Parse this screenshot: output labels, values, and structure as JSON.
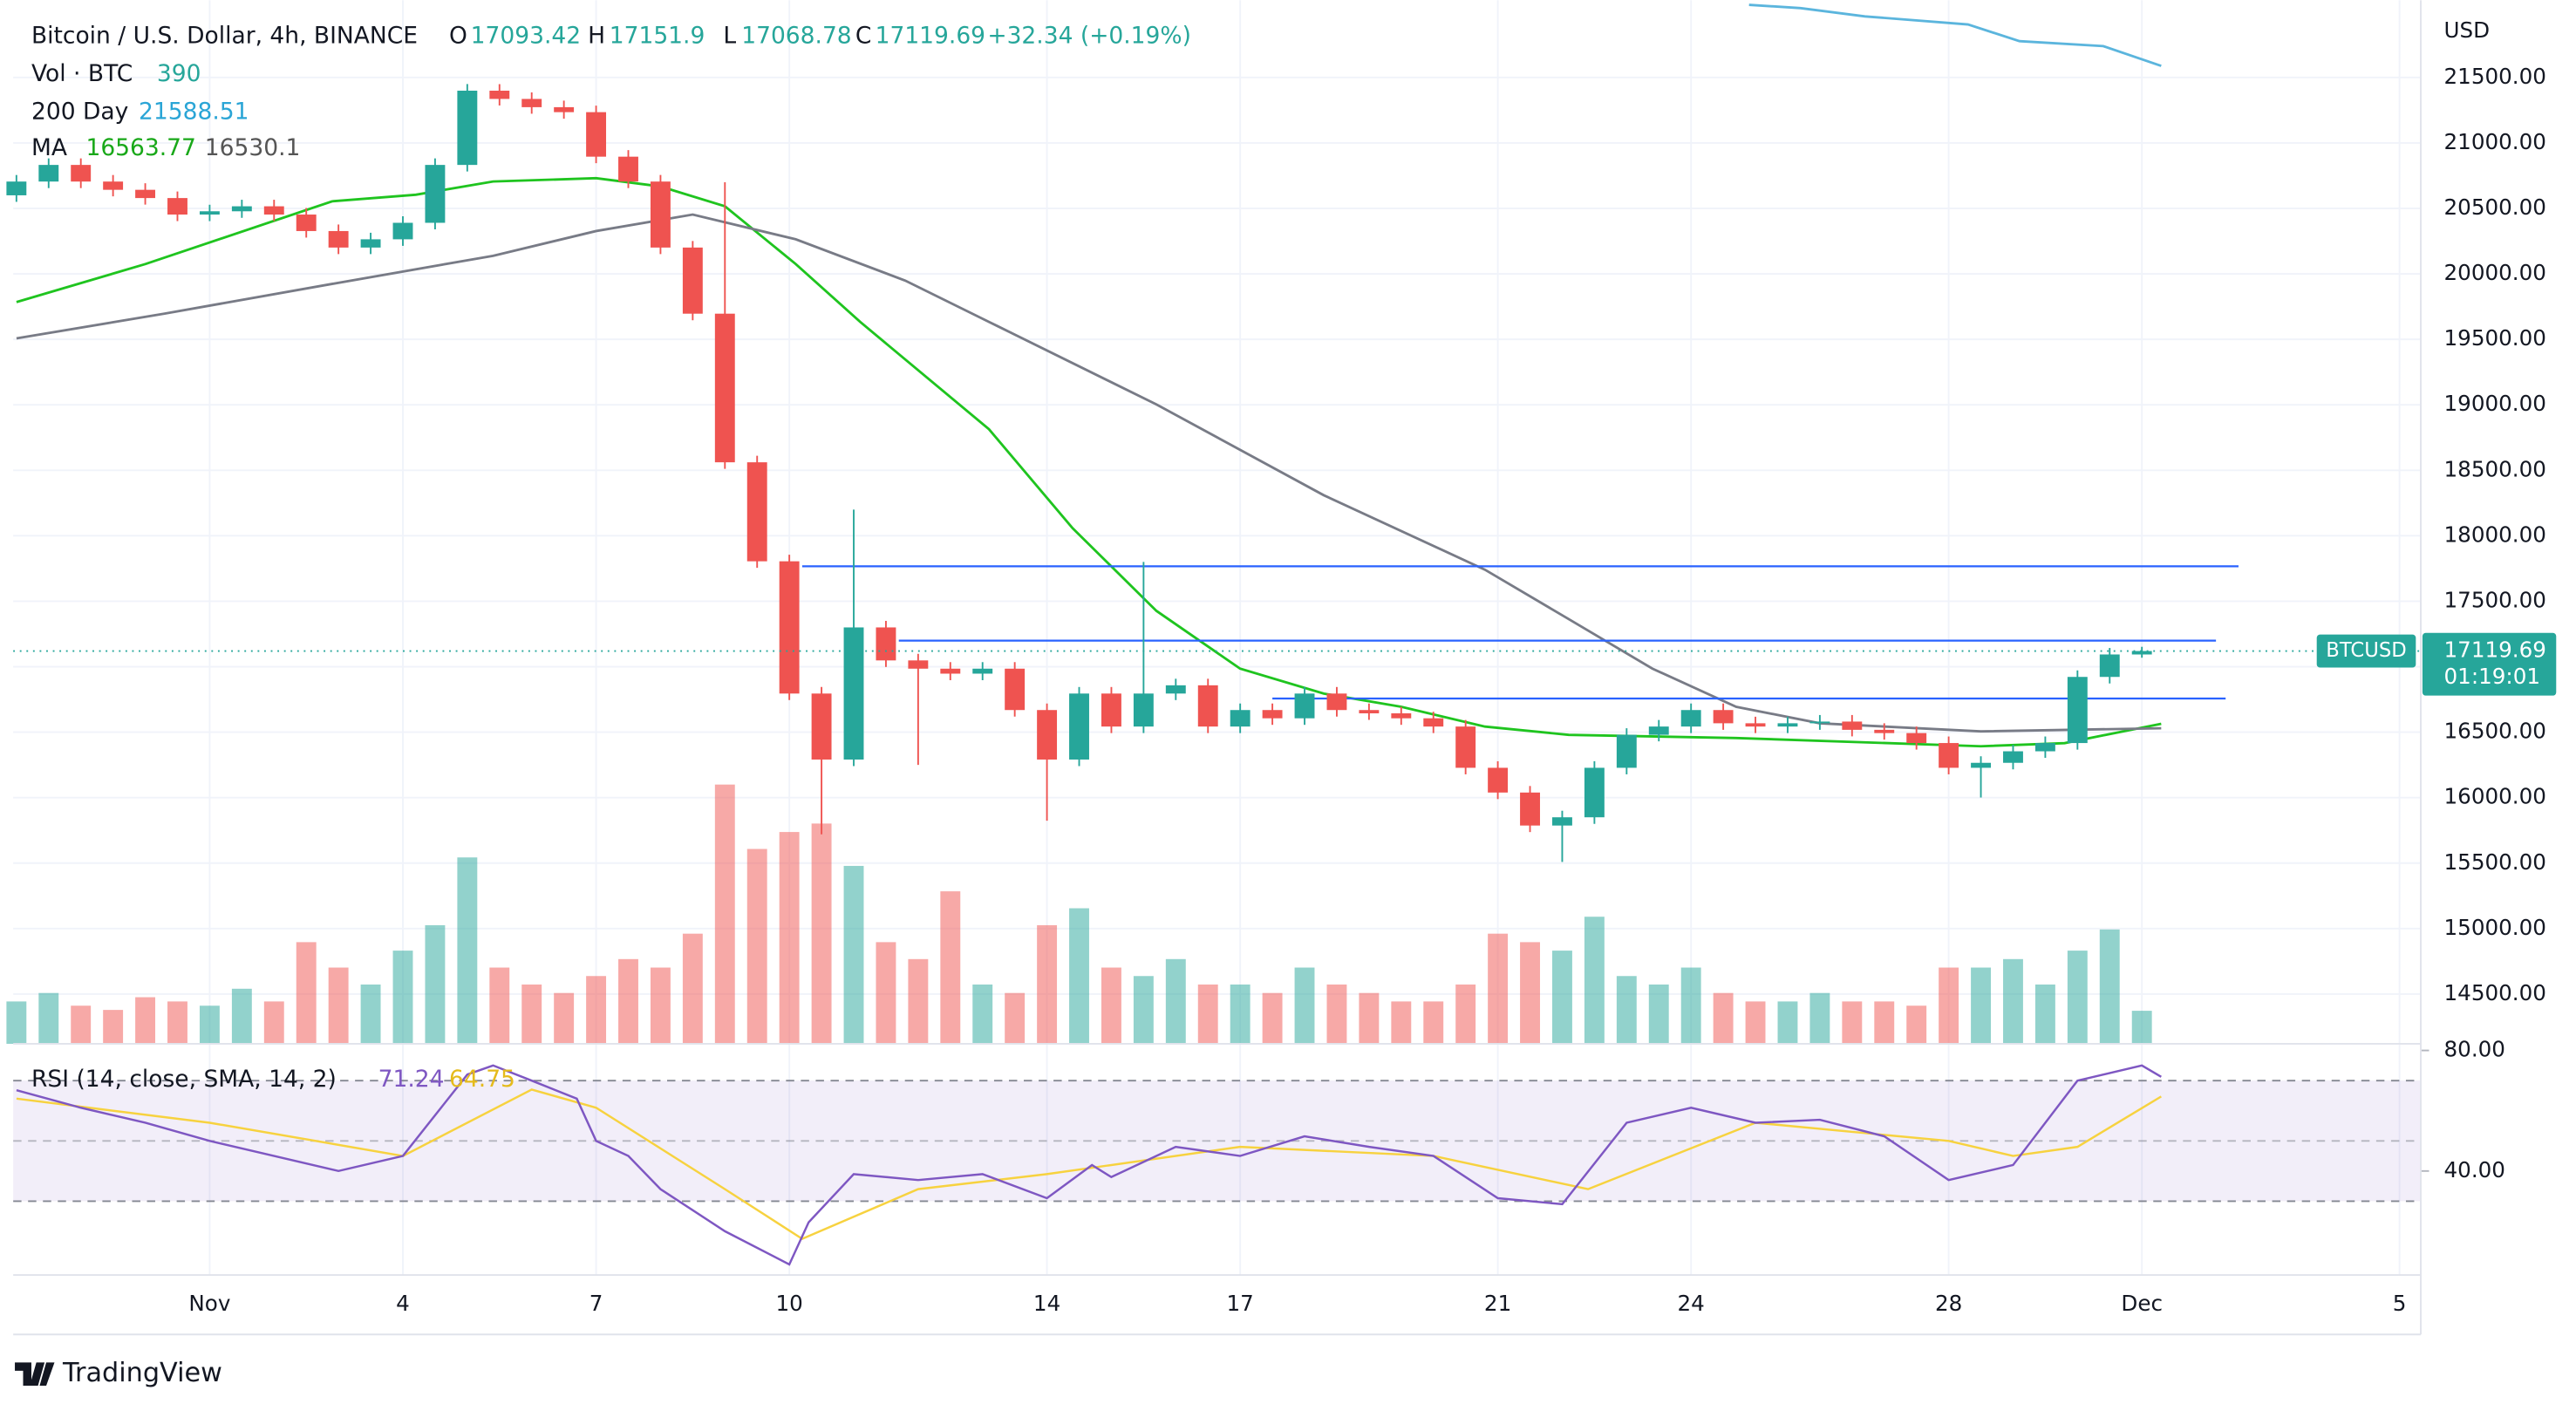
{
  "chart_data": {
    "type": "candlestick",
    "title": "Bitcoin / U.S. Dollar, 4h, BINANCE",
    "ohlc_letters": [
      "O",
      "H",
      "L",
      "C"
    ],
    "change": "+32.34 (+0.19%)",
    "currency": "USD",
    "symbol_tag": "BTCUSD",
    "countdown": "01:19:01",
    "brand": "TradingView",
    "up_color": "#26a69a",
    "down_color": "#ef5350",
    "grid": true,
    "xlim": [
      -3.05,
      34.33
    ],
    "xticks": [
      {
        "value": 0,
        "label": "Nov"
      },
      {
        "value": 3,
        "label": "4"
      },
      {
        "value": 6,
        "label": "7"
      },
      {
        "value": 9,
        "label": "10"
      },
      {
        "value": 13,
        "label": "14"
      },
      {
        "value": 16,
        "label": "17"
      },
      {
        "value": 20,
        "label": "21"
      },
      {
        "value": 23,
        "label": "24"
      },
      {
        "value": 27,
        "label": "28"
      },
      {
        "value": 30,
        "label": "Dec"
      },
      {
        "value": 34,
        "label": "5"
      }
    ],
    "ylim": [
      14120,
      22090
    ],
    "yticks": [
      {
        "value": 14500,
        "label": "14500.00"
      },
      {
        "value": 15000,
        "label": "15000.00"
      },
      {
        "value": 15500,
        "label": "15500.00"
      },
      {
        "value": 16000,
        "label": "16000.00"
      },
      {
        "value": 16500,
        "label": "16500.00"
      },
      {
        "value": 17000,
        "label": "17000.00"
      },
      {
        "value": 17500,
        "label": "17500.00"
      },
      {
        "value": 18000,
        "label": "18000.00"
      },
      {
        "value": 18500,
        "label": "18500.00"
      },
      {
        "value": 19000,
        "label": "19000.00"
      },
      {
        "value": 19500,
        "label": "19500.00"
      },
      {
        "value": 20000,
        "label": "20000.00"
      },
      {
        "value": 20500,
        "label": "20500.00"
      },
      {
        "value": 21000,
        "label": "21000.00"
      },
      {
        "value": 21500,
        "label": "21500.00"
      }
    ],
    "x": [
      -3,
      -2.5,
      -2,
      -1.5,
      -1,
      -0.5,
      0,
      0.5,
      1,
      1.5,
      2,
      2.5,
      3,
      3.5,
      4,
      4.5,
      5,
      5.5,
      6,
      6.5,
      7,
      7.5,
      8,
      8.5,
      9,
      9.5,
      10,
      10.5,
      11,
      11.5,
      12,
      12.5,
      13,
      13.5,
      14,
      14.5,
      15,
      15.5,
      16,
      16.5,
      17,
      17.5,
      18,
      18.5,
      19,
      19.5,
      20,
      20.5,
      21,
      21.5,
      22,
      22.5,
      23,
      23.5,
      24,
      24.5,
      25,
      25.5,
      26,
      26.5,
      27,
      27.5,
      28,
      28.5,
      29,
      29.5,
      30
    ],
    "open": [
      20600,
      20705,
      20832,
      20705,
      20642,
      20579,
      20453,
      20478,
      20516,
      20453,
      20327,
      20201,
      20264,
      20390,
      20832,
      21399,
      21336,
      21273,
      21235,
      20895,
      20705,
      20201,
      19696,
      18561,
      17805,
      16795,
      16291,
      17300,
      17048,
      16985,
      16947,
      16985,
      16669,
      16291,
      16795,
      16543,
      16795,
      16858,
      16543,
      16669,
      16606,
      16795,
      16669,
      16644,
      16606,
      16543,
      16228,
      16039,
      15787,
      15850,
      16228,
      16480,
      16543,
      16669,
      16568,
      16543,
      16568,
      16581,
      16518,
      16493,
      16417,
      16228,
      16266,
      16354,
      16417,
      16922,
      17093.42
    ],
    "high": [
      20755,
      20882,
      20882,
      20755,
      20692,
      20629,
      20528,
      20566,
      20566,
      20503,
      20377,
      20314,
      20440,
      20882,
      21450,
      21449,
      21386,
      21323,
      21285,
      20945,
      20755,
      20251,
      20700,
      18611,
      17855,
      16845,
      18200,
      17350,
      17098,
      17035,
      17035,
      17035,
      16719,
      16845,
      16845,
      17800,
      16908,
      16908,
      16719,
      16719,
      16845,
      16845,
      16719,
      16694,
      16656,
      16593,
      16278,
      16089,
      15900,
      16278,
      16530,
      16593,
      16719,
      16719,
      16618,
      16618,
      16631,
      16631,
      16568,
      16543,
      16467,
      16316,
      16404,
      16467,
      16972,
      17143,
      17151.9
    ],
    "low": [
      20550,
      20655,
      20655,
      20592,
      20529,
      20403,
      20403,
      20428,
      20403,
      20277,
      20151,
      20151,
      20214,
      20340,
      20782,
      21286,
      21223,
      21185,
      20845,
      20655,
      20151,
      19646,
      18511,
      17755,
      16745,
      15720,
      16241,
      16998,
      16250,
      16897,
      16897,
      16619,
      15824,
      16241,
      16493,
      16493,
      16745,
      16493,
      16493,
      16556,
      16556,
      16619,
      16594,
      16556,
      16493,
      16178,
      15989,
      15737,
      15509,
      15800,
      16178,
      16430,
      16493,
      16518,
      16493,
      16493,
      16518,
      16468,
      16443,
      16367,
      16178,
      16001,
      16216,
      16304,
      16367,
      16872,
      17068.78
    ],
    "close": [
      20705,
      20832,
      20705,
      20642,
      20579,
      20453,
      20478,
      20516,
      20453,
      20327,
      20201,
      20264,
      20390,
      20832,
      21399,
      21336,
      21273,
      21235,
      20895,
      20705,
      20201,
      19696,
      18561,
      17805,
      16795,
      16291,
      17300,
      17048,
      16985,
      16947,
      16985,
      16669,
      16291,
      16795,
      16543,
      16795,
      16858,
      16543,
      16669,
      16606,
      16795,
      16669,
      16644,
      16606,
      16543,
      16228,
      16039,
      15787,
      15850,
      16228,
      16480,
      16543,
      16669,
      16568,
      16543,
      16568,
      16581,
      16518,
      16493,
      16417,
      16228,
      16266,
      16354,
      16417,
      16922,
      17093.42,
      17119.69
    ],
    "volume_label": "Vol · BTC",
    "volume": [
      500,
      600,
      450,
      400,
      550,
      500,
      450,
      650,
      500,
      1200,
      900,
      700,
      1100,
      1400,
      2200,
      900,
      700,
      600,
      800,
      1000,
      900,
      1300,
      3060,
      2300,
      2500,
      2600,
      2100,
      1200,
      1000,
      1800,
      700,
      600,
      1400,
      1600,
      900,
      800,
      1000,
      700,
      700,
      600,
      900,
      700,
      600,
      500,
      500,
      700,
      1300,
      1200,
      1100,
      1500,
      800,
      700,
      900,
      600,
      500,
      500,
      600,
      500,
      500,
      450,
      900,
      900,
      1000,
      700,
      1100,
      1350,
      390
    ],
    "lines": [
      {
        "name": "200 Day",
        "color": "#5bb5dd",
        "x": [
          23.9,
          24.7,
          25.7,
          27.3,
          28.1,
          29.4,
          30.3
        ],
        "values": [
          22055,
          22030,
          21967,
          21904,
          21777,
          21740,
          21588.51
        ]
      },
      {
        "name": "MA",
        "color": "#1fc41f",
        "x": [
          -3,
          -1,
          1.9,
          3.2,
          4.4,
          6,
          7,
          8,
          9.1,
          10.1,
          12.1,
          13.4,
          14.7,
          16,
          17.3,
          18.5,
          19.8,
          21.1,
          23.7,
          27.5,
          28.8,
          30.3
        ],
        "values": [
          19785,
          20075,
          20554,
          20605,
          20705,
          20731,
          20668,
          20516,
          20075,
          19633,
          18814,
          18057,
          17426,
          16985,
          16795,
          16694,
          16543,
          16480,
          16455,
          16392,
          16417,
          16563.77
        ]
      },
      {
        "color": "#787b86",
        "x": [
          -3,
          -0.7,
          1.9,
          4.4,
          6,
          7.5,
          9.1,
          10.8,
          12.1,
          14.7,
          17.3,
          19.8,
          21.1,
          22.4,
          23.7,
          25,
          27.5,
          30.3
        ],
        "values": [
          19507,
          19696,
          19923,
          20138,
          20327,
          20453,
          20264,
          19949,
          19633,
          19003,
          18309,
          17741,
          17363,
          16985,
          16694,
          16568,
          16506,
          16530.1
        ]
      }
    ],
    "levels": {
      "color": "#2962ff",
      "items": [
        {
          "value": 17767,
          "x": [
            9.2,
            31.5
          ]
        },
        {
          "value": 17199,
          "x": [
            10.7,
            31.15
          ]
        },
        {
          "value": 16757,
          "x": [
            16.5,
            31.3
          ]
        }
      ]
    },
    "rsi": {
      "title": "RSI (14, close, SMA, 14, 2)",
      "ylim": [
        5.5,
        82.2
      ],
      "yticks": [
        {
          "value": 80,
          "label": "80.00"
        },
        {
          "value": 40,
          "label": "40.00"
        }
      ],
      "bands": [
        70,
        50,
        30
      ],
      "color": "#7e57c2",
      "x": [
        -3,
        -2,
        -1,
        0,
        1,
        2,
        3,
        4,
        4.4,
        5,
        5.7,
        6,
        6.5,
        7,
        8,
        9,
        9.3,
        10,
        11,
        12,
        13,
        13.7,
        14,
        15,
        16,
        17,
        18,
        19,
        20,
        21,
        22,
        23,
        24,
        25,
        26,
        27,
        28,
        29,
        30,
        30.3
      ],
      "values": [
        66.8,
        61,
        56,
        50,
        45,
        40,
        45,
        72,
        75,
        70,
        64,
        50,
        45,
        34,
        20,
        9,
        23,
        39,
        37,
        39,
        31,
        42,
        38,
        48,
        45,
        51.5,
        48,
        45,
        31,
        29,
        56,
        61,
        56,
        57,
        51.5,
        37,
        42,
        70,
        75,
        71.24
      ],
      "ma_color": "#f7d23f",
      "ma_x": [
        -3,
        0,
        3,
        5,
        6,
        8,
        9.2,
        11,
        13,
        16,
        19,
        21.4,
        24,
        27,
        28,
        29,
        30.3
      ],
      "ma_values": [
        64,
        56,
        45,
        67,
        61,
        34,
        17.5,
        34,
        39,
        48,
        45,
        34,
        56,
        50,
        45,
        48,
        64.75
      ]
    }
  }
}
